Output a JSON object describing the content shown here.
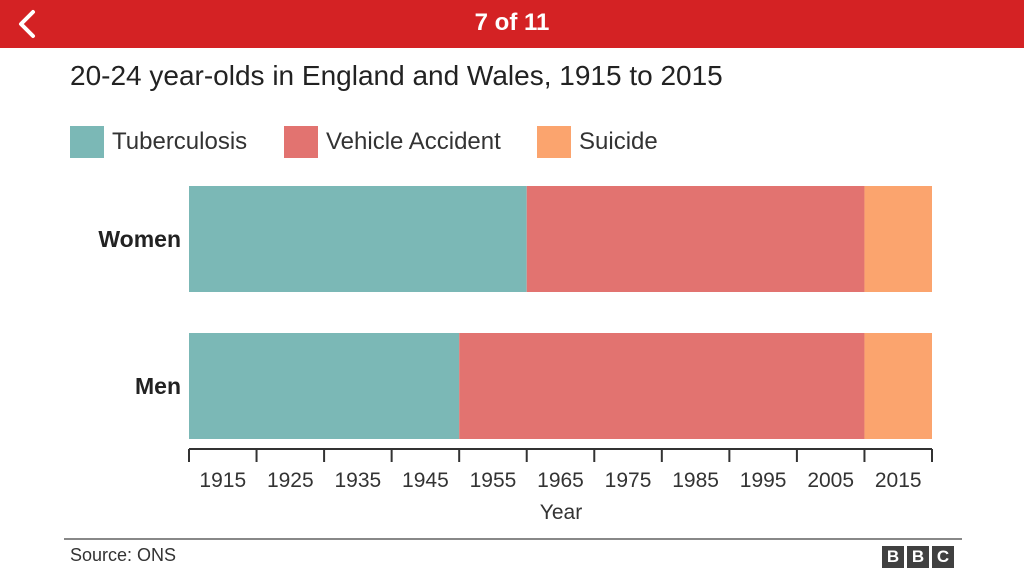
{
  "header": {
    "title": "7 of 11",
    "back_icon": "chevron-left-icon",
    "color": "#d42224"
  },
  "chart_data": {
    "type": "bar",
    "stacked": true,
    "orientation": "horizontal",
    "title": "20-24 year-olds in England and Wales, 1915 to 2015",
    "xlabel": "Year",
    "ylabel": "",
    "xlim": [
      1910,
      2020
    ],
    "x_ticks": [
      1915,
      1925,
      1935,
      1945,
      1955,
      1965,
      1975,
      1985,
      1995,
      2005,
      2015
    ],
    "categories": [
      "Women",
      "Men"
    ],
    "series": [
      {
        "name": "Tuberculosis",
        "color": "#7bb8b6",
        "start": [
          1910,
          1910
        ],
        "end": [
          1960,
          1950
        ]
      },
      {
        "name": "Vehicle Accident",
        "color": "#e27370",
        "start": [
          1960,
          1950
        ],
        "end": [
          2010,
          2010
        ]
      },
      {
        "name": "Suicide",
        "color": "#fba46e",
        "start": [
          2010,
          2010
        ],
        "end": [
          2020,
          2020
        ]
      }
    ],
    "legend_position": "top-left",
    "grid": false
  },
  "footer": {
    "source": "Source: ONS",
    "logo_letters": [
      "B",
      "B",
      "C"
    ]
  }
}
